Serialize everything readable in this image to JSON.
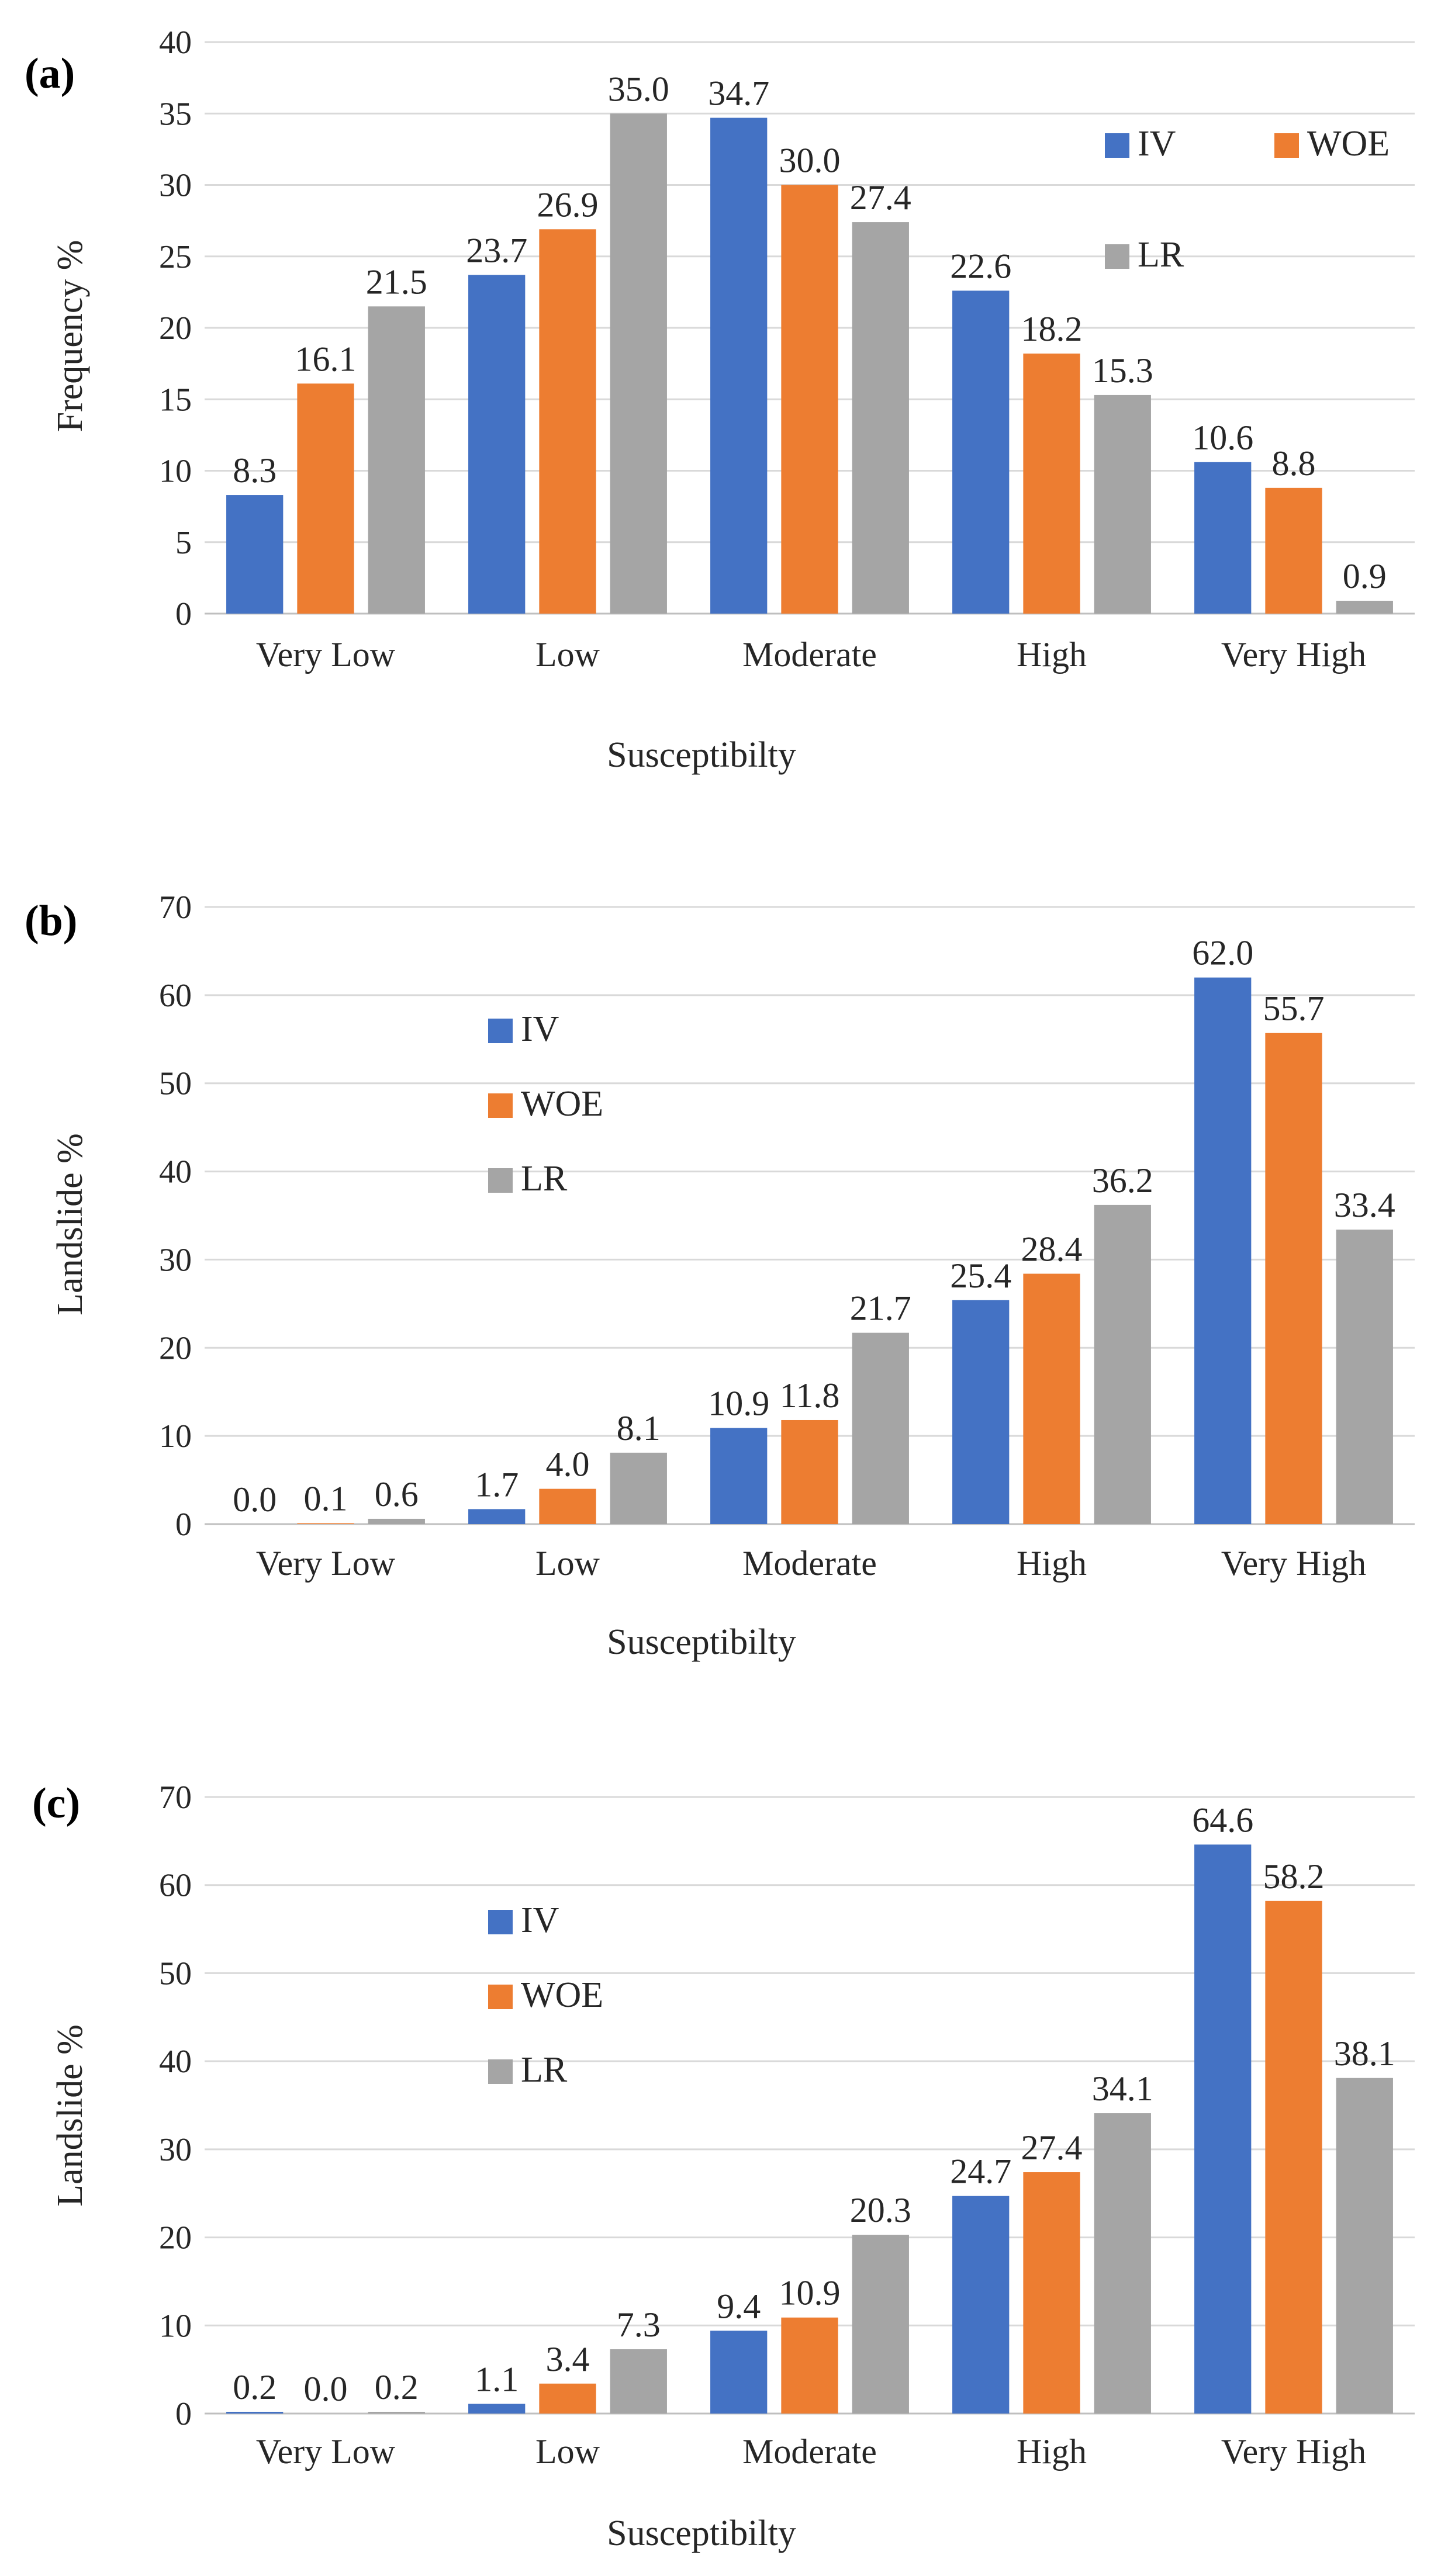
{
  "colors": {
    "IV": "#4472c4",
    "WOE": "#ed7d31",
    "LR": "#a5a5a5"
  },
  "chart_data": [
    {
      "type": "bar",
      "panel": "(a)",
      "categories": [
        "Very Low",
        "Low",
        "Moderate",
        "High",
        "Very High"
      ],
      "series": [
        {
          "name": "IV",
          "values": [
            8.3,
            23.7,
            34.7,
            22.6,
            10.6
          ]
        },
        {
          "name": "WOE",
          "values": [
            16.1,
            26.9,
            30.0,
            18.2,
            8.8
          ]
        },
        {
          "name": "LR",
          "values": [
            21.5,
            35.0,
            27.4,
            15.3,
            0.9
          ]
        }
      ],
      "data_labels": [
        [
          "8.3",
          "23.7",
          "34.7",
          "22.6",
          "10.6"
        ],
        [
          "16.1",
          "26.9",
          "30.0",
          "18.2",
          "8.8"
        ],
        [
          "21.5",
          "35.0",
          "27.4",
          "15.3",
          "0.9"
        ]
      ],
      "xlabel": "Susceptibilty",
      "ylabel": "Frequency %",
      "ylim": [
        0,
        40
      ],
      "yticks": [
        0,
        5,
        10,
        15,
        20,
        25,
        30,
        35,
        40
      ],
      "legend_position": "top-right"
    },
    {
      "type": "bar",
      "panel": "(b)",
      "categories": [
        "Very Low",
        "Low",
        "Moderate",
        "High",
        "Very High"
      ],
      "series": [
        {
          "name": "IV",
          "values": [
            0.0,
            1.7,
            10.9,
            25.4,
            62.0
          ]
        },
        {
          "name": "WOE",
          "values": [
            0.1,
            4.0,
            11.8,
            28.4,
            55.7
          ]
        },
        {
          "name": "LR",
          "values": [
            0.6,
            8.1,
            21.7,
            36.2,
            33.4
          ]
        }
      ],
      "data_labels": [
        [
          "0.0",
          "1.7",
          "10.9",
          "25.4",
          "62.0"
        ],
        [
          "0.1",
          "4.0",
          "11.8",
          "28.4",
          "55.7"
        ],
        [
          "0.6",
          "8.1",
          "21.7",
          "36.2",
          "33.4"
        ]
      ],
      "xlabel": "Susceptibilty",
      "ylabel": "Landslide %",
      "ylim": [
        0,
        70
      ],
      "yticks": [
        0,
        10,
        20,
        30,
        40,
        50,
        60,
        70
      ],
      "legend_position": "top-left"
    },
    {
      "type": "bar",
      "panel": "(c)",
      "categories": [
        "Very Low",
        "Low",
        "Moderate",
        "High",
        "Very High"
      ],
      "series": [
        {
          "name": "IV",
          "values": [
            0.2,
            1.1,
            9.4,
            24.7,
            64.6
          ]
        },
        {
          "name": "WOE",
          "values": [
            0.0,
            3.4,
            10.9,
            27.4,
            58.2
          ]
        },
        {
          "name": "LR",
          "values": [
            0.2,
            7.3,
            20.3,
            34.1,
            38.1
          ]
        }
      ],
      "data_labels": [
        [
          "0.2",
          "1.1",
          "9.4",
          "24.7",
          "64.6"
        ],
        [
          "0.0",
          "3.4",
          "10.9",
          "27.4",
          "58.2"
        ],
        [
          "0.2",
          "7.3",
          "20.3",
          "34.1",
          "38.1"
        ]
      ],
      "xlabel": "Susceptibilty",
      "ylabel": "Landslide %",
      "ylim": [
        0,
        70
      ],
      "yticks": [
        0,
        10,
        20,
        30,
        40,
        50,
        60,
        70
      ],
      "legend_position": "top-left"
    }
  ]
}
